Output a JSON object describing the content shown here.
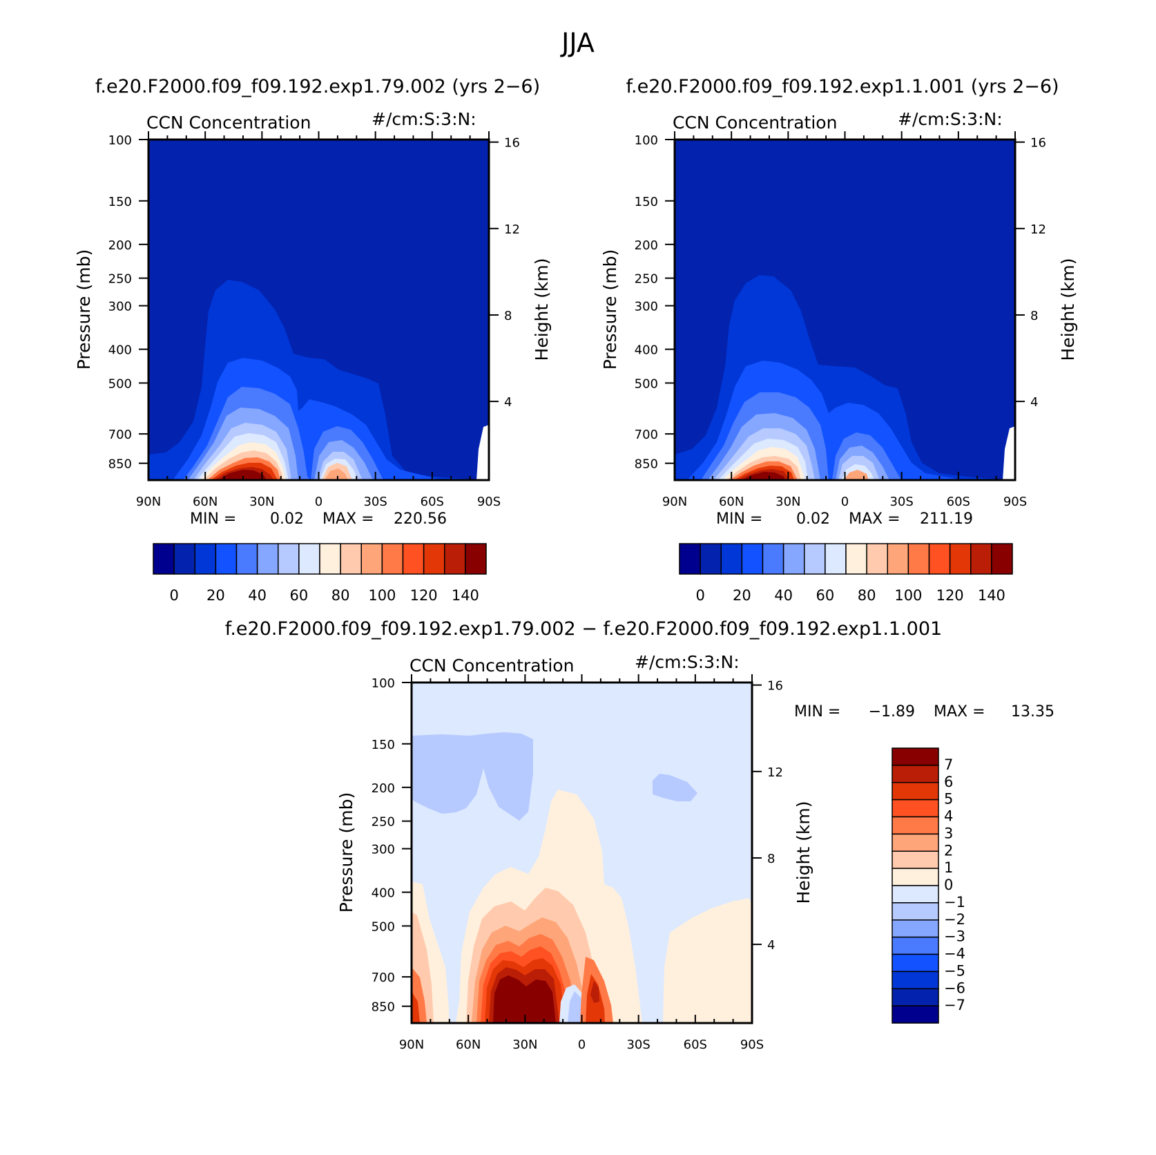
{
  "figure_title": "JJA",
  "colors": {
    "abs_scale": [
      "#00008e",
      "#0322ae",
      "#0037d6",
      "#1352ff",
      "#4a7bff",
      "#85a7ff",
      "#b6caff",
      "#dde9ff",
      "#fff0dd",
      "#ffcaad",
      "#ffa57a",
      "#ff7a47",
      "#ff5121",
      "#e33708",
      "#ba1e07",
      "#880000"
    ],
    "diff_scale": [
      "#880000",
      "#ba1e07",
      "#e33708",
      "#ff5121",
      "#ff7a47",
      "#ffa57a",
      "#ffcaad",
      "#fff0dd",
      "#dde9ff",
      "#b6caff",
      "#85a7ff",
      "#4a7bff",
      "#1352ff",
      "#0037d6",
      "#0322ae",
      "#00008e"
    ]
  },
  "chart_data": [
    {
      "id": "panel1",
      "type": "heatmap",
      "case_title": "f.e20.F2000.f09_f09.192.exp1.79.002 (yrs 2−6)",
      "variable": "CCN Concentration",
      "units": "#/cm:S:3:N:",
      "ylabel": "Pressure (mb)",
      "ylabel_right": "Height (km)",
      "x_tick_labels": [
        "90N",
        "60N",
        "30N",
        "0",
        "30S",
        "60S",
        "90S"
      ],
      "x_values": [
        90,
        60,
        30,
        0,
        -30,
        -60,
        -90
      ],
      "y_tick_labels": [
        "100",
        "150",
        "200",
        "250",
        "300",
        "400",
        "500",
        "700",
        "850"
      ],
      "y_values": [
        100,
        150,
        200,
        250,
        300,
        400,
        500,
        700,
        850
      ],
      "ylim": [
        100,
        950
      ],
      "height_tick_labels": [
        "16",
        "12",
        "8",
        "4"
      ],
      "height_values": [
        16,
        12,
        8,
        4
      ],
      "contour_levels": [
        0,
        10,
        20,
        30,
        40,
        50,
        60,
        70,
        80,
        90,
        100,
        110,
        120,
        130,
        140
      ],
      "colorbar_labels": [
        "0",
        "20",
        "40",
        "60",
        "80",
        "100",
        "120",
        "140"
      ],
      "colorbar_values": [
        0,
        20,
        40,
        60,
        80,
        100,
        120,
        140
      ],
      "min_label": "MIN =",
      "min_value": "0.02",
      "max_label": "MAX =",
      "max_value": "220.56"
    },
    {
      "id": "panel2",
      "type": "heatmap",
      "case_title": "f.e20.F2000.f09_f09.192.exp1.1.001 (yrs 2−6)",
      "variable": "CCN Concentration",
      "units": "#/cm:S:3:N:",
      "ylabel": "Pressure (mb)",
      "ylabel_right": "Height (km)",
      "x_tick_labels": [
        "90N",
        "60N",
        "30N",
        "0",
        "30S",
        "60S",
        "90S"
      ],
      "x_values": [
        90,
        60,
        30,
        0,
        -30,
        -60,
        -90
      ],
      "y_tick_labels": [
        "100",
        "150",
        "200",
        "250",
        "300",
        "400",
        "500",
        "700",
        "850"
      ],
      "y_values": [
        100,
        150,
        200,
        250,
        300,
        400,
        500,
        700,
        850
      ],
      "ylim": [
        100,
        950
      ],
      "height_tick_labels": [
        "16",
        "12",
        "8",
        "4"
      ],
      "height_values": [
        16,
        12,
        8,
        4
      ],
      "contour_levels": [
        0,
        10,
        20,
        30,
        40,
        50,
        60,
        70,
        80,
        90,
        100,
        110,
        120,
        130,
        140
      ],
      "colorbar_labels": [
        "0",
        "20",
        "40",
        "60",
        "80",
        "100",
        "120",
        "140"
      ],
      "colorbar_values": [
        0,
        20,
        40,
        60,
        80,
        100,
        120,
        140
      ],
      "min_label": "MIN =",
      "min_value": "0.02",
      "max_label": "MAX =",
      "max_value": "211.19"
    },
    {
      "id": "panel3",
      "type": "heatmap",
      "case_title": "f.e20.F2000.f09_f09.192.exp1.79.002 − f.e20.F2000.f09_f09.192.exp1.1.001",
      "variable": "CCN Concentration",
      "units": "#/cm:S:3:N:",
      "ylabel": "Pressure (mb)",
      "ylabel_right": "Height (km)",
      "x_tick_labels": [
        "90N",
        "60N",
        "30N",
        "0",
        "30S",
        "60S",
        "90S"
      ],
      "x_values": [
        90,
        60,
        30,
        0,
        -30,
        -60,
        -90
      ],
      "y_tick_labels": [
        "100",
        "150",
        "200",
        "250",
        "300",
        "400",
        "500",
        "700",
        "850"
      ],
      "y_values": [
        100,
        150,
        200,
        250,
        300,
        400,
        500,
        700,
        850
      ],
      "ylim": [
        100,
        950
      ],
      "height_tick_labels": [
        "16",
        "12",
        "8",
        "4"
      ],
      "height_values": [
        16,
        12,
        8,
        4
      ],
      "contour_levels": [
        7,
        6,
        5,
        4,
        3,
        2,
        1,
        0,
        -1,
        -2,
        -3,
        -4,
        -5,
        -6,
        -7
      ],
      "colorbar_labels": [
        "7",
        "6",
        "5",
        "4",
        "3",
        "2",
        "1",
        "0",
        "−1",
        "−2",
        "−3",
        "−4",
        "−5",
        "−6",
        "−7"
      ],
      "colorbar_values": [
        7,
        6,
        5,
        4,
        3,
        2,
        1,
        0,
        -1,
        -2,
        -3,
        -4,
        -5,
        -6,
        -7
      ],
      "min_label": "MIN =",
      "min_value": "−1.89",
      "max_label": "MAX =",
      "max_value": "13.35"
    }
  ]
}
